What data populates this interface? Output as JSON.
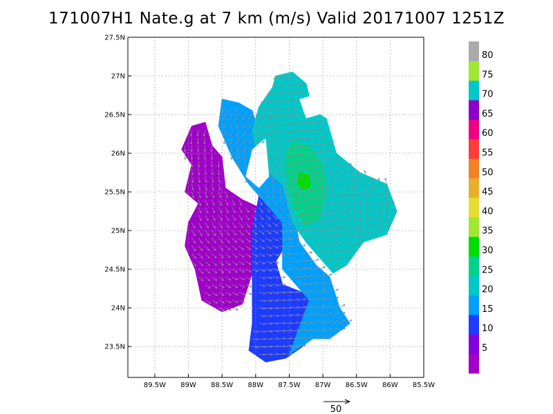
{
  "title": "171007H1 Nate.g at 7 km (m/s) Valid 20171007  1251Z",
  "map": {
    "lon_range": [
      -89.9,
      -85.5
    ],
    "lat_range": [
      23.1,
      27.5
    ],
    "x_ticks": [
      {
        "lon": -89.5,
        "label": "89.5W"
      },
      {
        "lon": -89.0,
        "label": "89W"
      },
      {
        "lon": -88.5,
        "label": "88.5W"
      },
      {
        "lon": -88.0,
        "label": "88W"
      },
      {
        "lon": -87.5,
        "label": "87.5W"
      },
      {
        "lon": -87.0,
        "label": "87W"
      },
      {
        "lon": -86.5,
        "label": "86.5W"
      },
      {
        "lon": -86.0,
        "label": "86W"
      },
      {
        "lon": -85.5,
        "label": "85.5W"
      }
    ],
    "y_ticks": [
      {
        "lat": 23.5,
        "label": "23.5N"
      },
      {
        "lat": 24.0,
        "label": "24N"
      },
      {
        "lat": 24.5,
        "label": "24.5N"
      },
      {
        "lat": 25.0,
        "label": "25N"
      },
      {
        "lat": 25.5,
        "label": "25.5N"
      },
      {
        "lat": 26.0,
        "label": "26N"
      },
      {
        "lat": 26.5,
        "label": "26.5N"
      },
      {
        "lat": 27.0,
        "label": "27N"
      },
      {
        "lat": 27.5,
        "label": "27.5N"
      }
    ],
    "grid": true,
    "center": {
      "lon": -87.25,
      "lat": 25.6
    }
  },
  "colorbar": {
    "colors": [
      "#a000c8",
      "#8200dc",
      "#1e3cff",
      "#00a0ff",
      "#00c8c8",
      "#00d28c",
      "#00dc00",
      "#a0e632",
      "#e6dc32",
      "#e6af2d",
      "#f08228",
      "#fa3c3c",
      "#f00082",
      "#8c00c8",
      "#00c8c8",
      "#a0e632",
      "#aaaaaa"
    ],
    "labels": [
      "5",
      "10",
      "15",
      "20",
      "25",
      "30",
      "35",
      "40",
      "45",
      "50",
      "55",
      "60",
      "65",
      "70",
      "75",
      "80"
    ]
  },
  "reference_vector": {
    "label": "50",
    "value": 50
  },
  "field_regions": [
    {
      "color": "#a000c8",
      "points": [
        [
          -88.95,
          26.35
        ],
        [
          -88.75,
          26.4
        ],
        [
          -88.65,
          26.1
        ],
        [
          -88.5,
          25.95
        ],
        [
          -88.45,
          25.55
        ],
        [
          -88.2,
          25.4
        ],
        [
          -87.95,
          25.3
        ],
        [
          -87.85,
          25.1
        ],
        [
          -88.05,
          24.9
        ],
        [
          -88.05,
          24.45
        ],
        [
          -88.2,
          24.05
        ],
        [
          -88.5,
          23.95
        ],
        [
          -88.8,
          24.1
        ],
        [
          -88.9,
          24.5
        ],
        [
          -89.05,
          24.8
        ],
        [
          -89.0,
          25.1
        ],
        [
          -88.85,
          25.35
        ],
        [
          -89.05,
          25.5
        ],
        [
          -88.95,
          25.85
        ],
        [
          -89.1,
          26.05
        ]
      ]
    },
    {
      "color": "#1e3cff",
      "points": [
        [
          -87.95,
          25.45
        ],
        [
          -87.6,
          25.4
        ],
        [
          -87.4,
          25.2
        ],
        [
          -87.5,
          24.9
        ],
        [
          -87.7,
          24.6
        ],
        [
          -87.6,
          24.3
        ],
        [
          -87.3,
          24.2
        ],
        [
          -87.1,
          24.0
        ],
        [
          -87.05,
          23.7
        ],
        [
          -87.3,
          23.5
        ],
        [
          -87.55,
          23.35
        ],
        [
          -87.85,
          23.3
        ],
        [
          -88.1,
          23.45
        ],
        [
          -88.05,
          23.8
        ],
        [
          -88.05,
          24.4
        ],
        [
          -88.05,
          25.0
        ]
      ]
    },
    {
      "color": "#00a0ff",
      "points": [
        [
          -88.5,
          26.7
        ],
        [
          -88.25,
          26.65
        ],
        [
          -88.05,
          26.55
        ],
        [
          -87.95,
          26.25
        ],
        [
          -87.7,
          26.0
        ],
        [
          -87.6,
          25.65
        ],
        [
          -87.45,
          25.3
        ],
        [
          -87.35,
          24.85
        ],
        [
          -87.1,
          24.55
        ],
        [
          -86.9,
          24.4
        ],
        [
          -86.75,
          24.0
        ],
        [
          -86.6,
          23.8
        ],
        [
          -86.9,
          23.6
        ],
        [
          -87.15,
          23.6
        ],
        [
          -87.5,
          23.4
        ],
        [
          -87.2,
          24.1
        ],
        [
          -87.6,
          24.5
        ],
        [
          -87.6,
          25.1
        ],
        [
          -87.85,
          25.35
        ],
        [
          -88.1,
          25.6
        ],
        [
          -88.35,
          25.95
        ],
        [
          -88.55,
          26.35
        ]
      ]
    },
    {
      "color": "#00c8c8",
      "points": [
        [
          -87.7,
          27.0
        ],
        [
          -87.45,
          27.05
        ],
        [
          -87.25,
          26.9
        ],
        [
          -87.15,
          26.55
        ],
        [
          -86.95,
          26.45
        ],
        [
          -86.8,
          26.0
        ],
        [
          -86.45,
          25.75
        ],
        [
          -86.05,
          25.6
        ],
        [
          -85.9,
          25.25
        ],
        [
          -86.05,
          24.95
        ],
        [
          -86.4,
          24.85
        ],
        [
          -86.65,
          24.55
        ],
        [
          -86.85,
          24.45
        ],
        [
          -87.05,
          24.65
        ],
        [
          -87.25,
          24.85
        ],
        [
          -87.45,
          25.1
        ],
        [
          -87.6,
          25.6
        ],
        [
          -87.95,
          25.85
        ],
        [
          -88.05,
          26.3
        ],
        [
          -87.95,
          26.6
        ],
        [
          -87.75,
          26.85
        ]
      ]
    },
    {
      "color": "#00d28c",
      "points": [
        [
          -87.45,
          26.15
        ],
        [
          -87.2,
          26.1
        ],
        [
          -87.0,
          25.85
        ],
        [
          -86.95,
          25.5
        ],
        [
          -87.05,
          25.15
        ],
        [
          -87.25,
          25.05
        ],
        [
          -87.45,
          25.3
        ],
        [
          -87.55,
          25.7
        ],
        [
          -87.55,
          26.0
        ]
      ]
    },
    {
      "color": "#00dc00",
      "points": [
        [
          -87.35,
          25.75
        ],
        [
          -87.22,
          25.72
        ],
        [
          -87.18,
          25.58
        ],
        [
          -87.28,
          25.52
        ],
        [
          -87.38,
          25.6
        ]
      ]
    }
  ],
  "ocean_gaps": [
    {
      "points": [
        [
          -88.05,
          26.05
        ],
        [
          -87.85,
          26.2
        ],
        [
          -87.8,
          25.7
        ],
        [
          -87.95,
          25.55
        ],
        [
          -88.15,
          25.7
        ]
      ]
    },
    {
      "points": [
        [
          -87.35,
          26.7
        ],
        [
          -87.15,
          26.75
        ],
        [
          -87.05,
          26.5
        ],
        [
          -87.25,
          26.45
        ]
      ]
    }
  ]
}
